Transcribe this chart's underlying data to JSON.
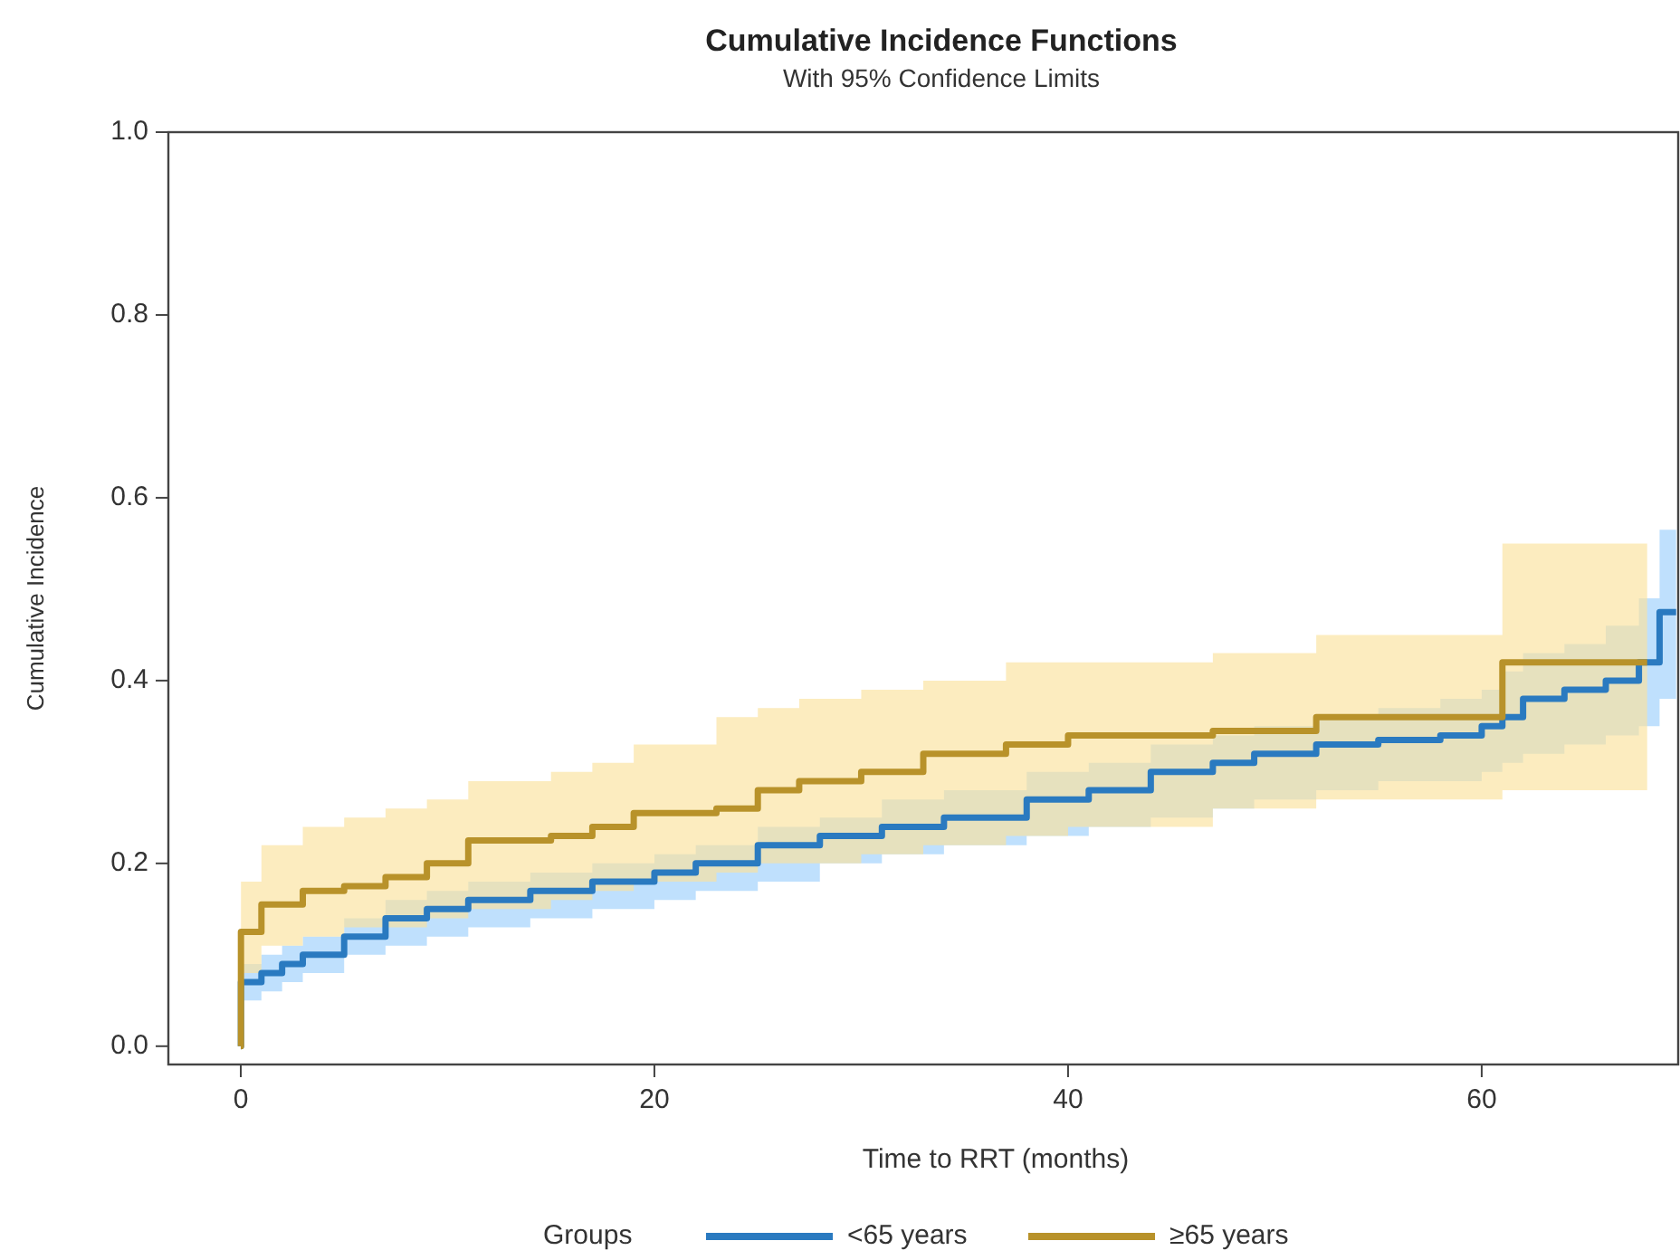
{
  "chart_data": {
    "type": "step",
    "title": "Cumulative Incidence Functions",
    "subtitle": "With 95% Confidence Limits",
    "xlabel": "Time to RRT (months)",
    "ylabel": "Cumulative Incidence",
    "legend_title": "Groups",
    "legend": "bottom",
    "xlim": [
      -3.5,
      69.5
    ],
    "ylim": [
      -0.02,
      1.0
    ],
    "xticks": [
      0,
      20,
      40,
      60
    ],
    "yticks": [
      {
        "value": 0,
        "label": "0.0"
      },
      0.2,
      0.4,
      0.6,
      0.8,
      {
        "value": 1,
        "label": "1.0"
      }
    ],
    "series": [
      {
        "name": "<65 years",
        "color": "#2a7ac0",
        "x": [
          0,
          0.01,
          1,
          2,
          3,
          5,
          7,
          9,
          11,
          14,
          17,
          20,
          22,
          25,
          28,
          31,
          34,
          38,
          41,
          44,
          47,
          49,
          52,
          55,
          58,
          60,
          61,
          62,
          64,
          66,
          67.6,
          68.6,
          69.4
        ],
        "values": [
          0,
          0.07,
          0.08,
          0.09,
          0.1,
          0.12,
          0.14,
          0.15,
          0.16,
          0.17,
          0.18,
          0.19,
          0.2,
          0.22,
          0.23,
          0.24,
          0.25,
          0.27,
          0.28,
          0.3,
          0.31,
          0.32,
          0.33,
          0.335,
          0.34,
          0.35,
          0.36,
          0.38,
          0.39,
          0.4,
          0.42,
          0.475,
          0.475
        ],
        "lower": [
          0,
          0.05,
          0.06,
          0.07,
          0.08,
          0.1,
          0.11,
          0.12,
          0.13,
          0.14,
          0.15,
          0.16,
          0.17,
          0.18,
          0.2,
          0.21,
          0.22,
          0.23,
          0.24,
          0.25,
          0.26,
          0.27,
          0.28,
          0.29,
          0.29,
          0.3,
          0.31,
          0.32,
          0.33,
          0.34,
          0.35,
          0.38,
          0.38
        ],
        "upper": [
          0,
          0.09,
          0.1,
          0.11,
          0.12,
          0.14,
          0.16,
          0.17,
          0.18,
          0.19,
          0.2,
          0.21,
          0.22,
          0.24,
          0.25,
          0.27,
          0.28,
          0.3,
          0.31,
          0.33,
          0.34,
          0.35,
          0.36,
          0.37,
          0.38,
          0.39,
          0.41,
          0.43,
          0.44,
          0.46,
          0.49,
          0.565,
          0.565
        ]
      },
      {
        "name": "≥65 years",
        "color": "#b8922a",
        "x": [
          0,
          0.01,
          1,
          3,
          5,
          7,
          9,
          11,
          15,
          17,
          19,
          23,
          25,
          27,
          30,
          33,
          37,
          40,
          47,
          52,
          61,
          68
        ],
        "values": [
          0,
          0.125,
          0.155,
          0.17,
          0.175,
          0.185,
          0.2,
          0.225,
          0.23,
          0.24,
          0.255,
          0.26,
          0.28,
          0.29,
          0.3,
          0.32,
          0.33,
          0.34,
          0.345,
          0.36,
          0.42,
          0.42
        ],
        "lower": [
          0,
          0.08,
          0.11,
          0.12,
          0.13,
          0.13,
          0.14,
          0.15,
          0.16,
          0.17,
          0.18,
          0.19,
          0.2,
          0.2,
          0.21,
          0.22,
          0.23,
          0.24,
          0.26,
          0.27,
          0.28,
          0.28
        ],
        "upper": [
          0,
          0.18,
          0.22,
          0.24,
          0.25,
          0.26,
          0.27,
          0.29,
          0.3,
          0.31,
          0.33,
          0.36,
          0.37,
          0.38,
          0.39,
          0.4,
          0.42,
          0.42,
          0.43,
          0.45,
          0.55,
          0.55
        ]
      }
    ]
  }
}
